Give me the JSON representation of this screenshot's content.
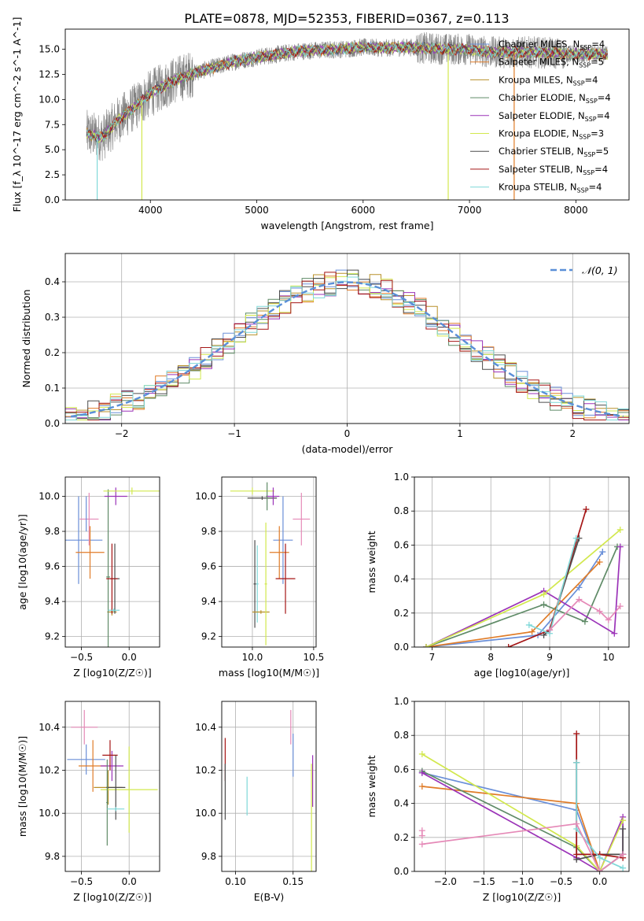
{
  "figure_title": "PLATE=0878, MJD=52353, FIBERID=0367, z=0.113",
  "series": [
    {
      "key": "cm",
      "name": "Chabrier MILES, N_SSP=4",
      "color": "#6a8fd8"
    },
    {
      "key": "sm",
      "name": "Salpeter MILES, N_SSP=5",
      "color": "#e07c28"
    },
    {
      "key": "km",
      "name": "Kroupa MILES, N_SSP=4",
      "color": "#b8902a"
    },
    {
      "key": "ce",
      "name": "Chabrier ELODIE, N_SSP=4",
      "color": "#5f8b67"
    },
    {
      "key": "se",
      "name": "Salpeter ELODIE, N_SSP=4",
      "color": "#9b33b8"
    },
    {
      "key": "ke",
      "name": "Kroupa ELODIE, N_SSP=3",
      "color": "#d2e84e"
    },
    {
      "key": "cs",
      "name": "Chabrier STELIB, N_SSP=5",
      "color": "#4d4d4d"
    },
    {
      "key": "ss",
      "name": "Salpeter STELIB, N_SSP=4",
      "color": "#a51616"
    },
    {
      "key": "ks",
      "name": "Kroupa STELIB, N_SSP=4",
      "color": "#7fd8d8"
    },
    {
      "key": "pk",
      "name": "",
      "color": "#e589b7"
    }
  ],
  "chart_data": [
    {
      "id": "spectrum",
      "type": "line",
      "title": "PLATE=0878, MJD=52353, FIBERID=0367, z=0.113",
      "xlabel": "wavelength [Angstrom, rest frame]",
      "ylabel": "Flux [f_λ 10^-17 erg cm^-2 s^-1 A^-1]",
      "xlim": [
        3200,
        8500
      ],
      "ylim": [
        0,
        17
      ],
      "xticks": [
        4000,
        5000,
        6000,
        7000,
        8000
      ],
      "yticks": [
        0.0,
        2.5,
        5.0,
        7.5,
        10.0,
        12.5,
        15.0
      ],
      "ytick_labels": [
        "0.0",
        "2.5",
        "5.0",
        "7.5",
        "10.0",
        "12.5",
        "15.0"
      ],
      "data_color": "#808080",
      "data_continuum": {
        "x": [
          3400,
          3550,
          3700,
          3850,
          4000,
          4200,
          4400,
          4600,
          4800,
          5000,
          5200,
          5400,
          5600,
          5800,
          6000,
          6200,
          6400,
          6600,
          6800,
          7000,
          7200,
          7400,
          7600,
          7800,
          8000,
          8200,
          8300
        ],
        "y": [
          6.6,
          6.2,
          8.0,
          9.2,
          10.6,
          11.8,
          12.6,
          13.2,
          13.8,
          14.2,
          14.5,
          14.8,
          14.9,
          15.0,
          15.2,
          15.1,
          15.2,
          15.1,
          15.0,
          15.0,
          14.7,
          14.7,
          14.7,
          14.6,
          14.5,
          14.5,
          14.4
        ]
      },
      "data_x_range": [
        3400,
        8300
      ],
      "model_range": [
        3400,
        8300
      ],
      "dips": [
        {
          "x": 3500,
          "y": 0,
          "color": "#7fd8d8"
        },
        {
          "x": 3920,
          "y": 0,
          "color": "#d2e84e"
        },
        {
          "x": 6800,
          "y": 0,
          "color": "#d2e84e"
        },
        {
          "x": 7420,
          "y": 0,
          "color": "#e07c28"
        }
      ],
      "legend": "right"
    },
    {
      "id": "residuals",
      "type": "step",
      "xlabel": "(data-model)/error",
      "ylabel": "Normed distribution",
      "xlim": [
        -2.5,
        2.5
      ],
      "ylim": [
        0,
        0.48
      ],
      "xticks": [
        -2,
        -1,
        0,
        1,
        2
      ],
      "xtick_labels": [
        "−2",
        "−1",
        "0",
        "1",
        "2"
      ],
      "yticks": [
        0.0,
        0.1,
        0.2,
        0.3,
        0.4
      ],
      "ytick_labels": [
        "0.0",
        "0.1",
        "0.2",
        "0.3",
        "0.4"
      ],
      "bin_width": 0.1,
      "gaussian": {
        "label": "𝒩(0, 1)",
        "color": "#5a8fd8"
      },
      "legend": "top-right"
    },
    {
      "id": "z_age",
      "type": "errorbar",
      "xlabel": "Z [log10(Z/Z☉)]",
      "ylabel": "age [log10(age/yr)]",
      "xlim": [
        -0.67,
        0.32
      ],
      "ylim": [
        9.14,
        10.11
      ],
      "xticks": [
        -0.5,
        0.0
      ],
      "xtick_labels": [
        "−0.5",
        "0.0"
      ],
      "yticks": [
        9.2,
        9.4,
        9.6,
        9.8,
        10.0
      ],
      "ytick_labels": [
        "9.2",
        "9.4",
        "9.6",
        "9.8",
        "10.0"
      ],
      "points": [
        {
          "c": "cm",
          "x": -0.53,
          "xe": 0.25,
          "y": 9.75,
          "ye": 0.25
        },
        {
          "c": "sm",
          "x": -0.41,
          "xe": 0.15,
          "y": 9.68,
          "ye": 0.15
        },
        {
          "c": "km",
          "x": -0.18,
          "xe": 0.05,
          "y": 9.34,
          "ye": 0.02
        },
        {
          "c": "ce",
          "x": -0.22,
          "xe": 0.02,
          "y": 9.54,
          "ye": 0.5
        },
        {
          "c": "se",
          "x": -0.14,
          "xe": 0.12,
          "y": 10.0,
          "ye": 0.05
        },
        {
          "c": "ke",
          "x": 0.03,
          "xe": 0.3,
          "y": 10.03,
          "ye": 0.02
        },
        {
          "c": "cs",
          "x": -0.15,
          "xe": 0.05,
          "y": 9.53,
          "ye": 0.2
        },
        {
          "c": "ss",
          "x": -0.18,
          "xe": 0.06,
          "y": 9.53,
          "ye": 0.2
        },
        {
          "c": "pk",
          "x": -0.42,
          "xe": 0.1,
          "y": 9.87,
          "ye": 0.15
        },
        {
          "c": "ks",
          "x": -0.16,
          "xe": 0.06,
          "y": 9.35,
          "ye": 0.01
        },
        {
          "c": "cm",
          "x": -0.45,
          "xe": 0.0,
          "y": 9.9,
          "ye": 0.1
        }
      ]
    },
    {
      "id": "mass_age",
      "type": "errorbar",
      "xlabel": "mass [log10(M/M☉)]",
      "ylabel": "",
      "xlim": [
        9.75,
        10.52
      ],
      "ylim": [
        9.14,
        10.11
      ],
      "xticks": [
        10.0,
        10.5
      ],
      "xtick_labels": [
        "10.0",
        "10.5"
      ],
      "yticks": [
        9.2,
        9.4,
        9.6,
        9.8,
        10.0
      ],
      "ytick_labels": [
        "9.2",
        "9.4",
        "9.6",
        "9.8",
        "10.0"
      ],
      "points": [
        {
          "c": "ke",
          "x": 10.0,
          "xe": 0.18,
          "y": 10.03,
          "ye": 0.02
        },
        {
          "c": "cs",
          "x": 10.08,
          "xe": 0.12,
          "y": 9.99,
          "ye": 0.01
        },
        {
          "c": "ce",
          "x": 10.12,
          "xe": 0.01,
          "y": 10.0,
          "ye": 0.08
        },
        {
          "c": "se",
          "x": 10.17,
          "xe": 0.05,
          "y": 10.0,
          "ye": 0.05
        },
        {
          "c": "cm",
          "x": 10.25,
          "xe": 0.08,
          "y": 9.75,
          "ye": 0.25
        },
        {
          "c": "sm",
          "x": 10.22,
          "xe": 0.08,
          "y": 9.68,
          "ye": 0.15
        },
        {
          "c": "pk",
          "x": 10.4,
          "xe": 0.07,
          "y": 9.87,
          "ye": 0.15
        },
        {
          "c": "ss",
          "x": 10.27,
          "xe": 0.08,
          "y": 9.53,
          "ye": 0.2
        },
        {
          "c": "ks",
          "x": 10.04,
          "xe": 0.01,
          "y": 9.5,
          "ye": 0.22
        },
        {
          "c": "cs",
          "x": 10.02,
          "xe": 0.01,
          "y": 9.5,
          "ye": 0.25
        },
        {
          "c": "km",
          "x": 10.07,
          "xe": 0.07,
          "y": 9.34,
          "ye": 0.01
        },
        {
          "c": "ke",
          "x": 10.11,
          "xe": 0.01,
          "y": 9.5,
          "ye": 0.35
        }
      ]
    },
    {
      "id": "age_weight",
      "type": "line",
      "xlabel": "age [log10(age/yr)]",
      "ylabel": "mass weight",
      "xlim": [
        6.7,
        10.35
      ],
      "ylim": [
        0,
        1
      ],
      "xticks": [
        7,
        8,
        9,
        10
      ],
      "xtick_labels": [
        "7",
        "8",
        "9",
        "10"
      ],
      "yticks": [
        0.0,
        0.2,
        0.4,
        0.6,
        0.8,
        1.0
      ],
      "ytick_labels": [
        "0.0",
        "0.2",
        "0.4",
        "0.6",
        "0.8",
        "1.0"
      ],
      "lines": [
        {
          "c": "cm",
          "x": [
            6.9,
            8.8,
            9.5,
            9.9
          ],
          "y": [
            0.0,
            0.07,
            0.35,
            0.56
          ]
        },
        {
          "c": "sm",
          "x": [
            6.9,
            8.7,
            9.85
          ],
          "y": [
            0.0,
            0.09,
            0.5
          ]
        },
        {
          "c": "ce",
          "x": [
            6.9,
            8.9,
            9.6,
            10.15
          ],
          "y": [
            0.0,
            0.25,
            0.15,
            0.59
          ]
        },
        {
          "c": "se",
          "x": [
            6.9,
            8.9,
            10.1,
            10.2
          ],
          "y": [
            0.0,
            0.33,
            0.08,
            0.59
          ]
        },
        {
          "c": "ke",
          "x": [
            6.9,
            8.9,
            10.2
          ],
          "y": [
            0.0,
            0.31,
            0.69
          ]
        },
        {
          "c": "cs",
          "x": [
            8.9,
            9.0,
            9.5
          ],
          "y": [
            0.07,
            0.1,
            0.64
          ]
        },
        {
          "c": "ss",
          "x": [
            8.3,
            9.0,
            9.62
          ],
          "y": [
            0.0,
            0.1,
            0.81
          ]
        },
        {
          "c": "ks",
          "x": [
            8.65,
            9.0,
            9.45
          ],
          "y": [
            0.13,
            0.08,
            0.64
          ]
        },
        {
          "c": "pk",
          "x": [
            9.0,
            9.5,
            9.85,
            10.0,
            10.2
          ],
          "y": [
            0.1,
            0.28,
            0.21,
            0.16,
            0.24
          ]
        }
      ]
    },
    {
      "id": "z_mass",
      "type": "errorbar",
      "xlabel": "Z [log10(Z/Z☉)]",
      "ylabel": "mass [log10(M/M☉)]",
      "xlim": [
        -0.67,
        0.32
      ],
      "ylim": [
        9.73,
        10.52
      ],
      "xticks": [
        -0.5,
        0.0
      ],
      "xtick_labels": [
        "−0.5",
        "0.0"
      ],
      "yticks": [
        9.8,
        10.0,
        10.2,
        10.4
      ],
      "ytick_labels": [
        "9.8",
        "10.0",
        "10.2",
        "10.4"
      ],
      "points": [
        {
          "c": "pk",
          "x": -0.47,
          "xe": 0.14,
          "y": 10.4,
          "ye": 0.08
        },
        {
          "c": "cm",
          "x": -0.45,
          "xe": 0.2,
          "y": 10.25,
          "ye": 0.07
        },
        {
          "c": "sm",
          "x": -0.38,
          "xe": 0.15,
          "y": 10.22,
          "ye": 0.12
        },
        {
          "c": "se",
          "x": -0.18,
          "xe": 0.12,
          "y": 10.22,
          "ye": 0.07
        },
        {
          "c": "ss",
          "x": -0.2,
          "xe": 0.08,
          "y": 10.27,
          "ye": 0.07
        },
        {
          "c": "km",
          "x": -0.22,
          "xe": 0.15,
          "y": 10.12,
          "ye": 0.08
        },
        {
          "c": "ke",
          "x": -0.0,
          "xe": 0.3,
          "y": 10.11,
          "ye": 0.2
        },
        {
          "c": "cs",
          "x": -0.14,
          "xe": 0.1,
          "y": 10.12,
          "ye": 0.15
        },
        {
          "c": "ce",
          "x": -0.23,
          "xe": 0.01,
          "y": 10.05,
          "ye": 0.2
        },
        {
          "c": "ks",
          "x": -0.14,
          "xe": 0.09,
          "y": 10.02,
          "ye": 0.01
        }
      ]
    },
    {
      "id": "ebv_mass",
      "type": "errorbar",
      "xlabel": "E(B-V)",
      "ylabel": "",
      "xlim": [
        0.088,
        0.17
      ],
      "ylim": [
        9.73,
        10.52
      ],
      "xticks": [
        0.1,
        0.15
      ],
      "xtick_labels": [
        "0.10",
        "0.15"
      ],
      "yticks": [
        9.8,
        10.0,
        10.2,
        10.4
      ],
      "ytick_labels": [
        "9.8",
        "10.0",
        "10.2",
        "10.4"
      ],
      "points": [
        {
          "c": "ss",
          "x": 0.091,
          "xe": 0.0,
          "y": 10.25,
          "ye": 0.1
        },
        {
          "c": "cs",
          "x": 0.091,
          "xe": 0.0,
          "y": 10.1,
          "ye": 0.13
        },
        {
          "c": "ks",
          "x": 0.11,
          "xe": 0.0,
          "y": 10.08,
          "ye": 0.09
        },
        {
          "c": "pk",
          "x": 0.148,
          "xe": 0.0,
          "y": 10.4,
          "ye": 0.08
        },
        {
          "c": "cm",
          "x": 0.15,
          "xe": 0.0,
          "y": 10.27,
          "ye": 0.1
        },
        {
          "c": "ke",
          "x": 0.166,
          "xe": 0.0,
          "y": 9.98,
          "ye": 0.25
        },
        {
          "c": "se",
          "x": 0.167,
          "xe": 0.0,
          "y": 10.15,
          "ye": 0.12
        }
      ]
    },
    {
      "id": "z_weight",
      "type": "line",
      "xlabel": "Z [log10(Z/Z☉)]",
      "ylabel": "mass weight",
      "xlim": [
        -2.4,
        0.38
      ],
      "ylim": [
        0,
        1
      ],
      "xticks": [
        -2.0,
        -1.5,
        -1.0,
        -0.5,
        0.0
      ],
      "xtick_labels": [
        "−2.0",
        "−1.5",
        "−1.0",
        "−0.5",
        "0.0"
      ],
      "yticks": [
        0.0,
        0.2,
        0.4,
        0.6,
        0.8,
        1.0
      ],
      "ytick_labels": [
        "0.0",
        "0.2",
        "0.4",
        "0.6",
        "0.8",
        "1.0"
      ],
      "lines": [
        {
          "c": "cm",
          "x": [
            -2.3,
            -0.3,
            0.0,
            0.3
          ],
          "y": [
            0.58,
            0.36,
            0.0,
            0.1
          ]
        },
        {
          "c": "sm",
          "x": [
            -2.3,
            -0.3,
            0.0,
            0.3
          ],
          "y": [
            0.5,
            0.4,
            0.0,
            0.1
          ]
        },
        {
          "c": "ce",
          "x": [
            -2.3,
            -0.3,
            0.0,
            0.3
          ],
          "y": [
            0.59,
            0.14,
            0.0,
            0.1
          ]
        },
        {
          "c": "se",
          "x": [
            -2.3,
            -0.3,
            0.0,
            0.3,
            0.3
          ],
          "y": [
            0.58,
            0.08,
            0.0,
            0.32,
            0.1
          ]
        },
        {
          "c": "ke",
          "x": [
            -2.3,
            -0.3,
            0.0,
            0.3
          ],
          "y": [
            0.69,
            0.15,
            0.0,
            0.3
          ]
        },
        {
          "c": "cs",
          "x": [
            -0.3,
            -0.3,
            0.0,
            0.3,
            0.3
          ],
          "y": [
            0.64,
            0.07,
            0.1,
            0.1,
            0.25
          ]
        },
        {
          "c": "ss",
          "x": [
            -0.3,
            -0.3,
            0.0,
            0.3
          ],
          "y": [
            0.81,
            0.1,
            0.1,
            0.08
          ]
        },
        {
          "c": "ks",
          "x": [
            -0.3,
            -0.3,
            0.0,
            0.3
          ],
          "y": [
            0.64,
            0.25,
            0.08,
            0.02
          ]
        },
        {
          "c": "pk",
          "x": [
            -2.3,
            -0.3,
            0.0,
            0.3
          ],
          "y": [
            0.16,
            0.28,
            0.0,
            0.1
          ]
        },
        {
          "c": "pk",
          "x": [
            -2.3,
            -2.3
          ],
          "y": [
            0.21,
            0.24
          ]
        }
      ]
    }
  ]
}
